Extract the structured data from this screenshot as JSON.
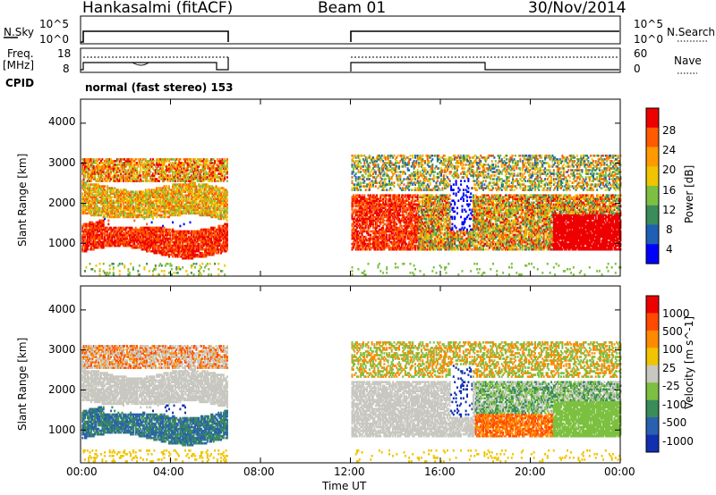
{
  "header": {
    "station": "Hankasalmi (fitACF)",
    "beam": "Beam 01",
    "date": "30/Nov/2014"
  },
  "top_panels": {
    "nsky_label": "N.Sky",
    "nsky_ticks": [
      "10^5",
      "10^0"
    ],
    "nsearch_label": "N.Search",
    "nsearch_ticks": [
      "10^5",
      "10^0"
    ],
    "freq_label": "Freq.",
    "freq_unit": "[MHz]",
    "freq_ticks": [
      "18",
      "8"
    ],
    "nave_label": "Nave",
    "nave_ticks": [
      "60",
      "0"
    ],
    "cpid_label": "CPID",
    "cpid_text": "normal (fast stereo) 153"
  },
  "x_axis": {
    "label": "Time UT",
    "ticks": [
      "00:00",
      "04:00",
      "08:00",
      "12:00",
      "16:00",
      "20:00",
      "00:00"
    ]
  },
  "chart_data": [
    {
      "type": "heatmap",
      "quantity": "Power",
      "colorbar_label": "Power [dB]",
      "colorbar_ticks": [
        "28",
        "24",
        "20",
        "16",
        "12",
        "8",
        "4"
      ],
      "ylabel": "Slant Range [km]",
      "yticks": [
        "4000",
        "3000",
        "2000",
        "1000"
      ],
      "ylim": [
        180,
        4600
      ],
      "xlim": [
        0,
        24
      ],
      "colors": [
        "#0000ff",
        "#1f5fb4",
        "#3a8c5a",
        "#7dc041",
        "#f0c400",
        "#ff9a00",
        "#ff5a00",
        "#ee0000"
      ],
      "data_gap_hours": [
        6.5,
        12.0
      ]
    },
    {
      "type": "heatmap",
      "quantity": "Velocity",
      "colorbar_label": "Velocity [m s^-1]",
      "colorbar_ticks": [
        "1000",
        "500",
        "100",
        "25",
        "-25",
        "-100",
        "-500",
        "-1000"
      ],
      "ylabel": "Slant Range [km]",
      "yticks": [
        "4000",
        "3000",
        "2000",
        "1000"
      ],
      "ylim": [
        180,
        4600
      ],
      "xlim": [
        0,
        24
      ],
      "colors": [
        "#1030b0",
        "#2a60b0",
        "#3a8c5a",
        "#7dc041",
        "#c8c8c0",
        "#f0c400",
        "#ff8a00",
        "#ff4a00",
        "#ee0000"
      ],
      "data_gap_hours": [
        6.5,
        12.0
      ]
    }
  ]
}
